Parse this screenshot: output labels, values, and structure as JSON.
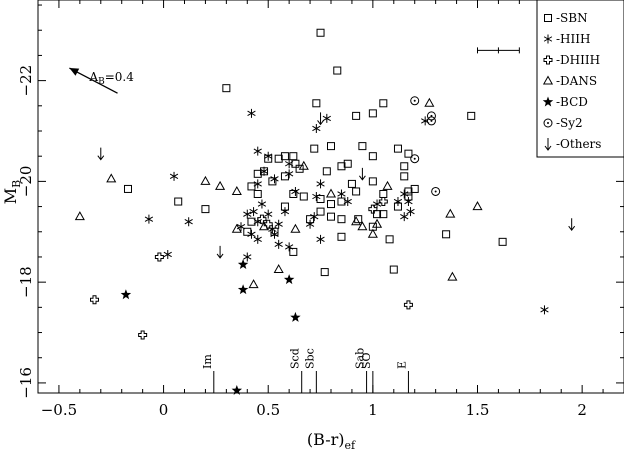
{
  "chart_data": {
    "type": "scatter",
    "xlabel": "(B-r)",
    "xlabel_sub": "ef",
    "ylabel": "M",
    "ylabel_sub": "B",
    "xlim": [
      -0.6,
      2.2
    ],
    "ylim": [
      -15.8,
      -23.6
    ],
    "x_ticks": [
      -0.5,
      0,
      0.5,
      1,
      1.5,
      2
    ],
    "x_tick_labels": [
      "−0.5",
      "0",
      "0.5",
      "1",
      "1.5",
      "2"
    ],
    "y_ticks": [
      -22,
      -20,
      -18,
      -16
    ],
    "y_tick_labels": [
      "−22",
      "−20",
      "−18",
      "−16"
    ],
    "grid": false,
    "legend_position": "top-right",
    "series": [
      {
        "name": "-SBN",
        "marker": "square",
        "points": [
          [
            0.75,
            -22.95
          ],
          [
            0.3,
            -21.85
          ],
          [
            0.83,
            -22.2
          ],
          [
            0.73,
            -21.55
          ],
          [
            0.92,
            -21.3
          ],
          [
            1.0,
            -21.35
          ],
          [
            1.05,
            -21.55
          ],
          [
            1.47,
            -21.3
          ],
          [
            0.62,
            -20.5
          ],
          [
            0.65,
            -20.25
          ],
          [
            0.72,
            -20.65
          ],
          [
            0.8,
            -20.7
          ],
          [
            0.85,
            -20.3
          ],
          [
            0.95,
            -20.7
          ],
          [
            1.0,
            -20.5
          ],
          [
            1.12,
            -20.65
          ],
          [
            1.15,
            -20.3
          ],
          [
            1.17,
            -20.55
          ],
          [
            0.5,
            -20.45
          ],
          [
            0.55,
            -20.45
          ],
          [
            0.58,
            -20.5
          ],
          [
            0.45,
            -20.15
          ],
          [
            0.48,
            -20.2
          ],
          [
            0.52,
            -20.0
          ],
          [
            0.58,
            -20.1
          ],
          [
            0.63,
            -20.35
          ],
          [
            0.78,
            -20.2
          ],
          [
            0.88,
            -20.35
          ],
          [
            0.9,
            -19.95
          ],
          [
            1.0,
            -20.0
          ],
          [
            1.05,
            -19.75
          ],
          [
            1.15,
            -20.1
          ],
          [
            1.17,
            -19.8
          ],
          [
            1.2,
            -19.85
          ],
          [
            0.42,
            -19.9
          ],
          [
            0.45,
            -19.75
          ],
          [
            0.62,
            -19.75
          ],
          [
            0.67,
            -19.7
          ],
          [
            0.75,
            -19.65
          ],
          [
            0.8,
            -19.55
          ],
          [
            0.85,
            -19.6
          ],
          [
            0.92,
            -19.8
          ],
          [
            1.05,
            -19.35
          ],
          [
            1.12,
            -19.5
          ],
          [
            1.17,
            -19.7
          ],
          [
            0.58,
            -19.5
          ],
          [
            0.7,
            -19.25
          ],
          [
            0.75,
            -19.4
          ],
          [
            0.8,
            -19.3
          ],
          [
            0.85,
            -19.25
          ],
          [
            0.93,
            -19.25
          ],
          [
            1.0,
            -19.1
          ],
          [
            1.02,
            -19.35
          ],
          [
            -0.17,
            -19.85
          ],
          [
            0.07,
            -19.6
          ],
          [
            0.2,
            -19.45
          ],
          [
            0.4,
            -19.0
          ],
          [
            0.42,
            -19.2
          ],
          [
            0.53,
            -19.0
          ],
          [
            0.62,
            -18.6
          ],
          [
            0.85,
            -18.9
          ],
          [
            1.08,
            -18.85
          ],
          [
            1.35,
            -18.95
          ],
          [
            0.77,
            -18.2
          ],
          [
            1.1,
            -18.25
          ],
          [
            1.62,
            -18.8
          ]
        ]
      },
      {
        "name": "-HIIH",
        "marker": "asterisk",
        "points": [
          [
            0.42,
            -21.35
          ],
          [
            0.5,
            -20.5
          ],
          [
            0.45,
            -20.6
          ],
          [
            0.6,
            -20.35
          ],
          [
            0.73,
            -21.05
          ],
          [
            0.78,
            -21.25
          ],
          [
            0.45,
            -19.95
          ],
          [
            0.48,
            -20.2
          ],
          [
            0.53,
            -20.05
          ],
          [
            0.6,
            -20.15
          ],
          [
            0.63,
            -19.8
          ],
          [
            0.73,
            -19.7
          ],
          [
            0.75,
            -19.95
          ],
          [
            0.85,
            -19.75
          ],
          [
            0.47,
            -19.55
          ],
          [
            0.4,
            -19.35
          ],
          [
            0.43,
            -19.4
          ],
          [
            0.45,
            -19.2
          ],
          [
            0.5,
            -19.35
          ],
          [
            0.52,
            -19.05
          ],
          [
            0.55,
            -19.15
          ],
          [
            0.58,
            -19.4
          ],
          [
            0.7,
            -19.15
          ],
          [
            0.72,
            -19.3
          ],
          [
            0.88,
            -19.6
          ],
          [
            1.02,
            -19.55
          ],
          [
            1.12,
            -19.6
          ],
          [
            1.15,
            -19.75
          ],
          [
            1.17,
            -19.6
          ],
          [
            0.37,
            -19.1
          ],
          [
            0.42,
            -18.95
          ],
          [
            0.53,
            -18.95
          ],
          [
            0.6,
            -18.7
          ],
          [
            0.75,
            -18.85
          ],
          [
            0.55,
            -18.75
          ],
          [
            0.45,
            -18.85
          ],
          [
            0.4,
            -18.5
          ],
          [
            0.05,
            -20.1
          ],
          [
            0.12,
            -19.2
          ],
          [
            -0.07,
            -19.25
          ],
          [
            0.02,
            -18.55
          ],
          [
            1.15,
            -19.3
          ],
          [
            1.25,
            -21.2
          ],
          [
            1.18,
            -19.4
          ],
          [
            1.82,
            -17.45
          ]
        ]
      },
      {
        "name": "-DHIIH",
        "marker": "cross-circle",
        "points": [
          [
            0.47,
            -19.25
          ],
          [
            0.5,
            -19.15
          ],
          [
            1.0,
            -19.45
          ],
          [
            1.05,
            -19.6
          ],
          [
            -0.02,
            -18.5
          ],
          [
            -0.33,
            -17.65
          ],
          [
            -0.1,
            -16.95
          ],
          [
            1.17,
            -17.55
          ]
        ]
      },
      {
        "name": "-DANS",
        "marker": "triangle",
        "points": [
          [
            -0.4,
            -19.3
          ],
          [
            -0.25,
            -20.05
          ],
          [
            0.2,
            -20.0
          ],
          [
            0.27,
            -19.9
          ],
          [
            0.35,
            -19.8
          ],
          [
            0.35,
            -19.05
          ],
          [
            0.48,
            -19.1
          ],
          [
            0.63,
            -19.05
          ],
          [
            0.67,
            -20.3
          ],
          [
            0.8,
            -19.75
          ],
          [
            0.92,
            -19.2
          ],
          [
            1.02,
            -19.15
          ],
          [
            1.07,
            -19.9
          ],
          [
            0.55,
            -18.25
          ],
          [
            0.43,
            -17.95
          ],
          [
            0.95,
            -19.1
          ],
          [
            1.0,
            -18.95
          ],
          [
            1.37,
            -19.35
          ],
          [
            1.5,
            -19.5
          ],
          [
            1.38,
            -18.1
          ],
          [
            1.27,
            -21.55
          ]
        ]
      },
      {
        "name": "-BCD",
        "marker": "star",
        "points": [
          [
            -0.18,
            -17.75
          ],
          [
            0.38,
            -18.35
          ],
          [
            0.38,
            -17.85
          ],
          [
            0.6,
            -18.05
          ],
          [
            0.63,
            -17.3
          ],
          [
            0.35,
            -15.85
          ]
        ]
      },
      {
        "name": "-Sy2",
        "marker": "circle-dot",
        "points": [
          [
            1.2,
            -21.6
          ],
          [
            1.28,
            -21.3
          ],
          [
            1.28,
            -21.2
          ],
          [
            1.2,
            -20.45
          ],
          [
            1.3,
            -19.8
          ]
        ]
      },
      {
        "name": "-Others",
        "marker": "arrow-down",
        "points": [
          [
            -0.3,
            -20.55
          ],
          [
            0.27,
            -18.6
          ],
          [
            0.75,
            -21.25
          ],
          [
            0.95,
            -20.15
          ],
          [
            1.95,
            -19.15
          ]
        ]
      }
    ],
    "error_bar": {
      "x": 1.6,
      "y": -22.6,
      "xerr": 0.1
    },
    "annotations": [
      {
        "text": "A",
        "sub": "B",
        "suffix": "=0.4",
        "arrow_from": [
          -0.22,
          -21.75
        ],
        "arrow_to": [
          -0.45,
          -22.25
        ]
      }
    ],
    "morph_markers": [
      {
        "label": "Im",
        "x": 0.24
      },
      {
        "label": "Scd",
        "x": 0.66
      },
      {
        "label": "Sbc",
        "x": 0.73
      },
      {
        "label": "Sab",
        "x": 0.97
      },
      {
        "label": "SO",
        "x": 1.0
      },
      {
        "label": "E",
        "x": 1.17
      }
    ]
  }
}
